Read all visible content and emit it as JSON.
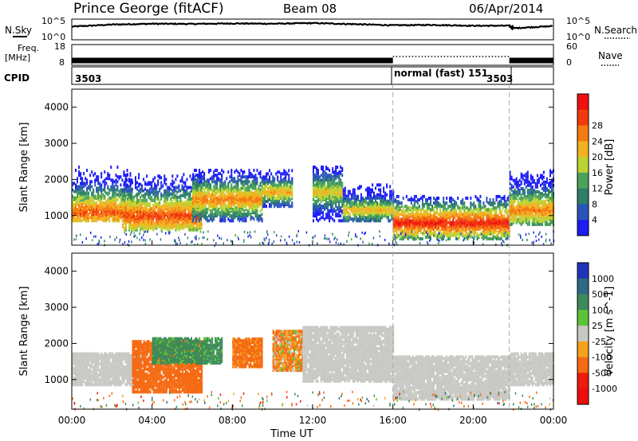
{
  "header": {
    "site": "Prince George (fitACF)",
    "beam": "Beam 08",
    "date": "06/Apr/2014"
  },
  "left_labels": {
    "nsky": "N.Sky",
    "freq_line1": "Freq.",
    "freq_line2": "[MHz]",
    "cpid": "CPID"
  },
  "right_labels": {
    "nsearch": "N.Search",
    "nave": "Nave"
  },
  "noise_axis": {
    "top": "10^5",
    "bottom": "10^0"
  },
  "freq_axis": {
    "left_top": "18",
    "left_bottom": "8",
    "right_top": "60",
    "right_bottom": "0"
  },
  "cpid_labels": [
    "3503",
    "normal (fast) 151",
    "3503"
  ],
  "axes": {
    "ylabel": "Slant Range [km]",
    "xlabel": "Time UT",
    "y_ticks": [
      "1000",
      "2000",
      "3000",
      "4000"
    ],
    "x_ticks": [
      "00:00",
      "04:00",
      "08:00",
      "12:00",
      "16:00",
      "20:00",
      "00:00"
    ]
  },
  "power_scale": {
    "label": "Power [dB]",
    "ticks": [
      "4",
      "8",
      "12",
      "16",
      "20",
      "24",
      "28"
    ],
    "colors": [
      "#1c1cf5",
      "#2a55b8",
      "#2e7e6a",
      "#4aa35a",
      "#bcd433",
      "#f2b21f",
      "#f57a12",
      "#f23a0e",
      "#f01010"
    ]
  },
  "velocity_scale": {
    "label": "Velocity [m s^-1]",
    "ticks": [
      "1000",
      "500",
      "100",
      "25",
      "-25",
      "-100",
      "-500",
      "-1000"
    ],
    "colors": [
      "#2233bb",
      "#2d6a86",
      "#3d8a5a",
      "#5cc23a",
      "#c8c8c4",
      "#f5a11c",
      "#f56a12",
      "#ee1c0e",
      "#ee0c0c"
    ]
  },
  "chart_data": [
    {
      "type": "line",
      "name": "noise",
      "xlim": [
        0,
        24
      ],
      "x_unit": "hours UT",
      "series": [
        {
          "name": "N.Sky",
          "x": [
            0,
            2,
            4,
            6,
            8,
            10,
            12,
            14,
            16,
            18,
            20,
            21.8,
            22,
            24
          ],
          "y": [
            1800,
            6000,
            10000,
            9000,
            12000,
            10000,
            15000,
            8000,
            4000,
            5000,
            3000,
            3000,
            700,
            2500
          ]
        }
      ]
    },
    {
      "type": "bar",
      "name": "frequency",
      "xlim": [
        0,
        24
      ],
      "ylim": [
        8,
        18
      ],
      "segments": [
        {
          "start": 0,
          "end": 16,
          "freq_mhz": 10.5
        },
        {
          "start": 21.8,
          "end": 24,
          "freq_mhz": 10.5
        }
      ]
    },
    {
      "type": "heatmap",
      "name": "power",
      "xlim": [
        0,
        24
      ],
      "ylim": [
        180,
        4500
      ],
      "zlabel": "Power [dB]",
      "zlim": [
        0,
        30
      ],
      "regions": [
        {
          "t0": 0.0,
          "t1": 3.0,
          "r0": 900,
          "r1": 2500,
          "peak": 26,
          "core_r": 1150
        },
        {
          "t0": 2.5,
          "t1": 6.5,
          "r0": 650,
          "r1": 2200,
          "peak": 27,
          "core_r": 1050
        },
        {
          "t0": 6.0,
          "t1": 9.5,
          "r0": 900,
          "r1": 2300,
          "peak": 24,
          "core_r": 1500
        },
        {
          "t0": 9.5,
          "t1": 11.0,
          "r0": 1300,
          "r1": 2300,
          "peak": 22,
          "core_r": 1700
        },
        {
          "t0": 12.0,
          "t1": 13.5,
          "r0": 900,
          "r1": 2400,
          "peak": 20,
          "core_r": 1700
        },
        {
          "t0": 13.5,
          "t1": 16.0,
          "r0": 900,
          "r1": 1900,
          "peak": 21,
          "core_r": 1200
        },
        {
          "t0": 16.0,
          "t1": 21.8,
          "r0": 400,
          "r1": 1600,
          "peak": 29,
          "core_r": 850
        },
        {
          "t0": 21.8,
          "t1": 24.0,
          "r0": 800,
          "r1": 2300,
          "peak": 24,
          "core_r": 1200
        }
      ]
    },
    {
      "type": "heatmap",
      "name": "velocity",
      "xlim": [
        0,
        24
      ],
      "ylim": [
        180,
        4500
      ],
      "zlabel": "Velocity [m s^-1]",
      "zlim": [
        -1000,
        1000
      ],
      "regions": [
        {
          "t0": 0.0,
          "t1": 3.5,
          "r0": 900,
          "r1": 1800,
          "v": 0
        },
        {
          "t0": 3.0,
          "t1": 6.5,
          "r0": 700,
          "r1": 2100,
          "v": -300
        },
        {
          "t0": 4.0,
          "t1": 7.5,
          "r0": 1500,
          "r1": 2200,
          "v": 200
        },
        {
          "t0": 8.0,
          "t1": 9.5,
          "r0": 1400,
          "r1": 2200,
          "v": -200
        },
        {
          "t0": 10.0,
          "t1": 11.5,
          "r0": 1300,
          "r1": 2400,
          "v": -100
        },
        {
          "t0": 11.5,
          "t1": 16.0,
          "r0": 1000,
          "r1": 2500,
          "v": 0
        },
        {
          "t0": 16.0,
          "t1": 21.8,
          "r0": 500,
          "r1": 1700,
          "v": 0
        },
        {
          "t0": 21.8,
          "t1": 24.0,
          "r0": 900,
          "r1": 1800,
          "v": 0
        }
      ]
    }
  ]
}
